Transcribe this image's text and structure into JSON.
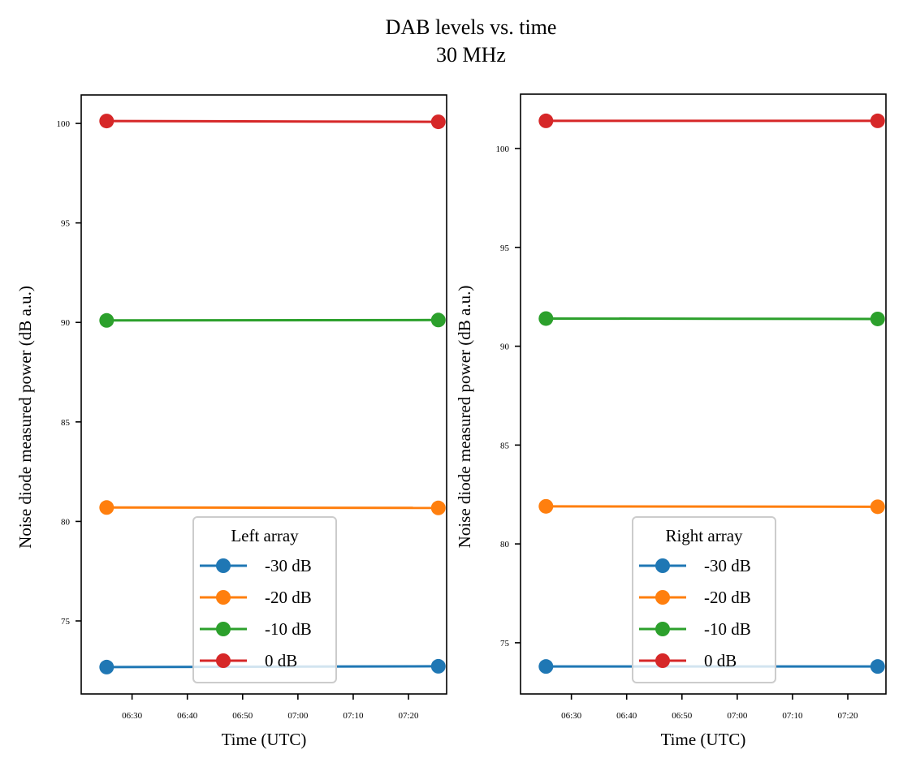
{
  "chart_data": {
    "type": "line",
    "title": "DAB levels vs. time",
    "subtitle": "30 MHz",
    "panels": [
      {
        "name": "left",
        "legend_title": "Left array",
        "legend_position": "lower-center",
        "xlabel": "Time (UTC)",
        "ylabel": "Noise diode measured power (dB a.u.)",
        "x_tick_labels": [
          "06:30",
          "06:40",
          "06:50",
          "07:00",
          "07:10",
          "07:20"
        ],
        "x_ticks_minutes": [
          390,
          400,
          410,
          420,
          430,
          440
        ],
        "xlim_minutes": [
          380.8,
          446.9
        ],
        "y_ticks": [
          75,
          80,
          85,
          90,
          95,
          100
        ],
        "ylim": [
          71.33,
          101.43
        ],
        "x_minutes": [
          385.4,
          445.4
        ],
        "x": [
          "06:25",
          "07:25"
        ],
        "series": [
          {
            "name": "-30 dB",
            "color": "#1f77b4",
            "values": [
              72.68,
              72.72
            ]
          },
          {
            "name": "-20 dB",
            "color": "#ff7f0e",
            "values": [
              80.7,
              80.68
            ]
          },
          {
            "name": "-10 dB",
            "color": "#2ca02c",
            "values": [
              90.1,
              90.12
            ]
          },
          {
            "name": "0 dB",
            "color": "#d62728",
            "values": [
              100.12,
              100.08
            ]
          }
        ]
      },
      {
        "name": "right",
        "legend_title": "Right array",
        "legend_position": "lower-center",
        "xlabel": "Time (UTC)",
        "ylabel": "Noise diode measured power (dB a.u.)",
        "x_tick_labels": [
          "06:30",
          "06:40",
          "06:50",
          "07:00",
          "07:10",
          "07:20"
        ],
        "x_ticks_minutes": [
          390,
          400,
          410,
          420,
          430,
          440
        ],
        "xlim_minutes": [
          380.8,
          446.9
        ],
        "y_ticks": [
          75,
          80,
          85,
          90,
          95,
          100
        ],
        "ylim": [
          72.41,
          102.75
        ],
        "x_minutes": [
          385.4,
          445.4
        ],
        "x": [
          "06:25",
          "07:25"
        ],
        "series": [
          {
            "name": "-30 dB",
            "color": "#1f77b4",
            "values": [
              73.8,
              73.8
            ]
          },
          {
            "name": "-20 dB",
            "color": "#ff7f0e",
            "values": [
              81.9,
              81.88
            ]
          },
          {
            "name": "-10 dB",
            "color": "#2ca02c",
            "values": [
              91.4,
              91.38
            ]
          },
          {
            "name": "0 dB",
            "color": "#d62728",
            "values": [
              101.4,
              101.4
            ]
          }
        ]
      }
    ],
    "grid": false
  }
}
